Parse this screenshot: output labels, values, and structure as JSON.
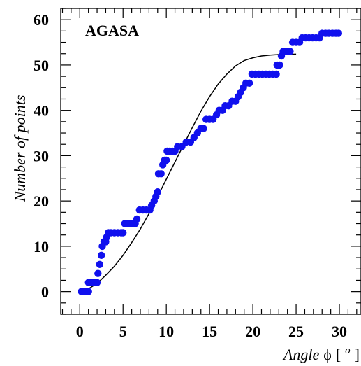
{
  "chart_data": {
    "type": "scatter",
    "annotation": "AGASA",
    "xlabel": "Angle ϕ [ o ]",
    "xlabel_parts": {
      "main": "Angle",
      "symbol": "ϕ",
      "open": "[",
      "superscript": "o",
      "close": "]"
    },
    "ylabel": "Number of points",
    "xlim": [
      -2.2,
      32.5
    ],
    "ylim": [
      -5,
      62.5
    ],
    "x_ticks": [
      0,
      5,
      10,
      15,
      20,
      25,
      30
    ],
    "y_ticks": [
      0,
      10,
      20,
      30,
      40,
      50,
      60
    ],
    "x_tick_labels": [
      "0",
      "5",
      "10",
      "15",
      "20",
      "25",
      "30"
    ],
    "y_tick_labels": [
      "0",
      "10",
      "20",
      "30",
      "40",
      "50",
      "60"
    ],
    "grid": false,
    "legend": "none",
    "marker_color": "#1010ee",
    "curve_color": "#000000",
    "series": [
      {
        "kind": "points",
        "points": [
          [
            0.2,
            0
          ],
          [
            0.4,
            0
          ],
          [
            0.6,
            0
          ],
          [
            0.8,
            0
          ],
          [
            1.0,
            0
          ],
          [
            1.0,
            2
          ],
          [
            1.2,
            2
          ],
          [
            1.4,
            2
          ],
          [
            1.6,
            2
          ],
          [
            1.8,
            2
          ],
          [
            2.0,
            2
          ],
          [
            2.1,
            4
          ],
          [
            2.3,
            6
          ],
          [
            2.5,
            8
          ],
          [
            2.6,
            10
          ],
          [
            2.8,
            11
          ],
          [
            3.0,
            11
          ],
          [
            3.1,
            12
          ],
          [
            3.3,
            13
          ],
          [
            3.6,
            13
          ],
          [
            4.0,
            13
          ],
          [
            4.4,
            13
          ],
          [
            4.8,
            13
          ],
          [
            5.0,
            13
          ],
          [
            5.2,
            15
          ],
          [
            5.6,
            15
          ],
          [
            6.0,
            15
          ],
          [
            6.4,
            15
          ],
          [
            6.6,
            16
          ],
          [
            6.9,
            18
          ],
          [
            7.3,
            18
          ],
          [
            7.7,
            18
          ],
          [
            8.1,
            18
          ],
          [
            8.3,
            19
          ],
          [
            8.6,
            20
          ],
          [
            8.8,
            21
          ],
          [
            9.0,
            22
          ],
          [
            9.1,
            26
          ],
          [
            9.4,
            26
          ],
          [
            9.6,
            28
          ],
          [
            9.8,
            29
          ],
          [
            10.0,
            29
          ],
          [
            10.1,
            31
          ],
          [
            10.4,
            31
          ],
          [
            10.7,
            31
          ],
          [
            11.0,
            31
          ],
          [
            11.3,
            32
          ],
          [
            11.8,
            32
          ],
          [
            12.3,
            33
          ],
          [
            12.8,
            33
          ],
          [
            13.2,
            34
          ],
          [
            13.6,
            35
          ],
          [
            14.0,
            36
          ],
          [
            14.3,
            36
          ],
          [
            14.6,
            38
          ],
          [
            15.0,
            38
          ],
          [
            15.4,
            38
          ],
          [
            15.8,
            39
          ],
          [
            16.1,
            40
          ],
          [
            16.5,
            40
          ],
          [
            16.8,
            41
          ],
          [
            17.2,
            41
          ],
          [
            17.6,
            42
          ],
          [
            18.0,
            42
          ],
          [
            18.3,
            43
          ],
          [
            18.6,
            44
          ],
          [
            18.9,
            45
          ],
          [
            19.2,
            46
          ],
          [
            19.6,
            46
          ],
          [
            19.9,
            48
          ],
          [
            20.3,
            48
          ],
          [
            20.7,
            48
          ],
          [
            21.1,
            48
          ],
          [
            21.5,
            48
          ],
          [
            21.9,
            48
          ],
          [
            22.3,
            48
          ],
          [
            22.7,
            48
          ],
          [
            22.8,
            50
          ],
          [
            23.1,
            50
          ],
          [
            23.3,
            52
          ],
          [
            23.5,
            53
          ],
          [
            23.9,
            53
          ],
          [
            24.3,
            53
          ],
          [
            24.6,
            55
          ],
          [
            25.0,
            55
          ],
          [
            25.4,
            55
          ],
          [
            25.7,
            56
          ],
          [
            26.1,
            56
          ],
          [
            26.5,
            56
          ],
          [
            26.9,
            56
          ],
          [
            27.3,
            56
          ],
          [
            27.7,
            56
          ],
          [
            28.0,
            57
          ],
          [
            28.4,
            57
          ],
          [
            28.8,
            57
          ],
          [
            29.2,
            57
          ],
          [
            29.6,
            57
          ],
          [
            29.9,
            57
          ]
        ]
      },
      {
        "kind": "curve",
        "x": [
          0,
          1,
          2,
          3,
          4,
          5,
          6,
          7,
          8,
          9,
          10,
          11,
          12,
          13,
          14,
          15,
          16,
          17,
          18,
          19,
          20,
          21,
          22,
          23,
          24,
          25
        ],
        "y": [
          0,
          0.6,
          1.8,
          3.6,
          5.6,
          8.0,
          10.8,
          13.8,
          17.2,
          21.0,
          24.8,
          28.6,
          32.4,
          36.2,
          39.8,
          43.0,
          45.8,
          48.0,
          49.8,
          51.0,
          51.6,
          52.0,
          52.2,
          52.3,
          52.35,
          52.4
        ]
      }
    ]
  }
}
